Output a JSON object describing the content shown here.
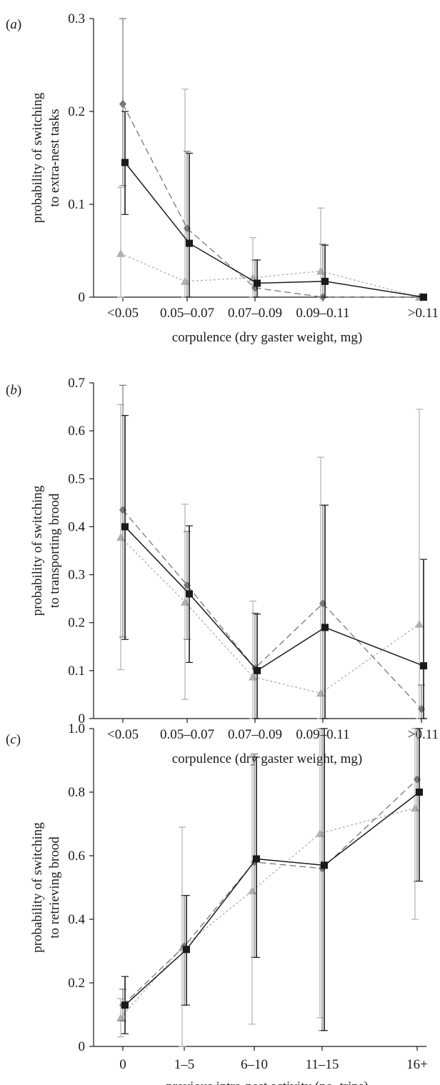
{
  "chart_data": [
    {
      "type": "line",
      "panel": "(a)",
      "panel_label_parts": [
        "(",
        "a",
        ")"
      ],
      "xlabel": "corpulence (dry gaster weight, mg)",
      "ylabel_lines": [
        "probability of switching",
        "to extra-nest tasks"
      ],
      "categories": [
        "<0.05",
        "0.05–0.07",
        "0.07–0.09",
        "0.09–0.11",
        ">0.11"
      ],
      "ylim": [
        0,
        0.3
      ],
      "yticks": [
        0,
        0.1,
        0.2,
        0.3
      ],
      "ytick_labels": [
        "0",
        "0.1",
        "0.2",
        "0.3"
      ],
      "series": [
        {
          "style": "dashed-diamond",
          "color": "#777777",
          "values": [
            0.208,
            0.074,
            0.01,
            0.0,
            0.0
          ],
          "err_low": [
            0.12,
            0.0,
            0.0,
            0.0,
            0.0
          ],
          "err_high": [
            0.3,
            0.157,
            0.04,
            0.057,
            0.0
          ]
        },
        {
          "style": "dotted-triangle",
          "color": "#b0b0b0",
          "values": [
            0.047,
            0.017,
            0.021,
            0.028,
            0.0
          ],
          "err_low": [
            0.0,
            0.0,
            0.0,
            0.0,
            0.0
          ],
          "err_high": [
            0.118,
            0.224,
            0.064,
            0.096,
            0.0
          ]
        },
        {
          "style": "solid-square",
          "color": "#1a1a1a",
          "values": [
            0.145,
            0.058,
            0.015,
            0.017,
            0.0
          ],
          "err_low": [
            0.089,
            0.0,
            0.0,
            0.0,
            0.0
          ],
          "err_high": [
            0.2,
            0.155,
            0.04,
            0.056,
            0.0
          ]
        }
      ]
    },
    {
      "type": "line",
      "panel": "(b)",
      "panel_label_parts": [
        "(",
        "b",
        ")"
      ],
      "xlabel": "corpulence (dry gaster weight, mg)",
      "ylabel_lines": [
        "probability of switching",
        "to transporting brood"
      ],
      "categories": [
        "<0.05",
        "0.05–0.07",
        "0.07–0.09",
        "0.09–0.11",
        ">0.11"
      ],
      "ylim": [
        0,
        0.7
      ],
      "yticks": [
        0,
        0.1,
        0.2,
        0.3,
        0.4,
        0.5,
        0.6,
        0.7
      ],
      "ytick_labels": [
        "0",
        "0.1",
        "0.2",
        "0.3",
        "0.4",
        "0.5",
        "0.6",
        "0.7"
      ],
      "series": [
        {
          "style": "dashed-diamond",
          "color": "#777777",
          "values": [
            0.435,
            0.278,
            0.105,
            0.24,
            0.02
          ],
          "err_low": [
            0.17,
            0.165,
            0.0,
            0.0,
            0.0
          ],
          "err_high": [
            0.695,
            0.39,
            0.22,
            0.445,
            0.07
          ]
        },
        {
          "style": "dotted-triangle",
          "color": "#b0b0b0",
          "values": [
            0.378,
            0.243,
            0.087,
            0.053,
            0.197
          ],
          "err_low": [
            0.102,
            0.04,
            0.0,
            0.0,
            0.0
          ],
          "err_high": [
            0.655,
            0.447,
            0.245,
            0.545,
            0.645
          ]
        },
        {
          "style": "solid-square",
          "color": "#1a1a1a",
          "values": [
            0.4,
            0.26,
            0.1,
            0.19,
            0.11
          ],
          "err_low": [
            0.165,
            0.117,
            -0.02,
            0.0,
            0.0
          ],
          "err_high": [
            0.632,
            0.402,
            0.218,
            0.445,
            0.332
          ]
        }
      ]
    },
    {
      "type": "line",
      "panel": "(c)",
      "panel_label_parts": [
        "(",
        "c",
        ")"
      ],
      "xlabel": "previous intra-nest activity (no. trips)",
      "ylabel_lines": [
        "probability of switching",
        "to retrieving brood"
      ],
      "categories": [
        "0",
        "1–5",
        "6–10",
        "11–15",
        "16+"
      ],
      "ylim": [
        0,
        1.0
      ],
      "yticks": [
        0,
        0.2,
        0.4,
        0.6,
        0.8,
        1.0
      ],
      "ytick_labels": [
        "0",
        "0.2",
        "0.4",
        "0.6",
        "0.8",
        "1.0"
      ],
      "series": [
        {
          "style": "dashed-diamond",
          "color": "#777777",
          "values": [
            0.13,
            0.315,
            0.58,
            0.56,
            0.84
          ],
          "err_low": [
            0.08,
            0.13,
            0.28,
            0.05,
            0.52
          ],
          "err_high": [
            0.18,
            0.475,
            0.92,
            1.0,
            1.0
          ]
        },
        {
          "style": "dotted-triangle",
          "color": "#b0b0b0",
          "values": [
            0.09,
            0.31,
            0.49,
            0.67,
            0.75
          ],
          "err_low": [
            0.03,
            0.0,
            0.07,
            0.09,
            0.4
          ],
          "err_high": [
            0.15,
            0.69,
            0.915,
            1.0,
            1.0
          ]
        },
        {
          "style": "solid-square",
          "color": "#1a1a1a",
          "values": [
            0.13,
            0.305,
            0.59,
            0.57,
            0.8
          ],
          "err_low": [
            0.04,
            0.13,
            0.28,
            0.05,
            0.52
          ],
          "err_high": [
            0.22,
            0.475,
            0.91,
            1.0,
            1.0
          ]
        }
      ]
    }
  ]
}
